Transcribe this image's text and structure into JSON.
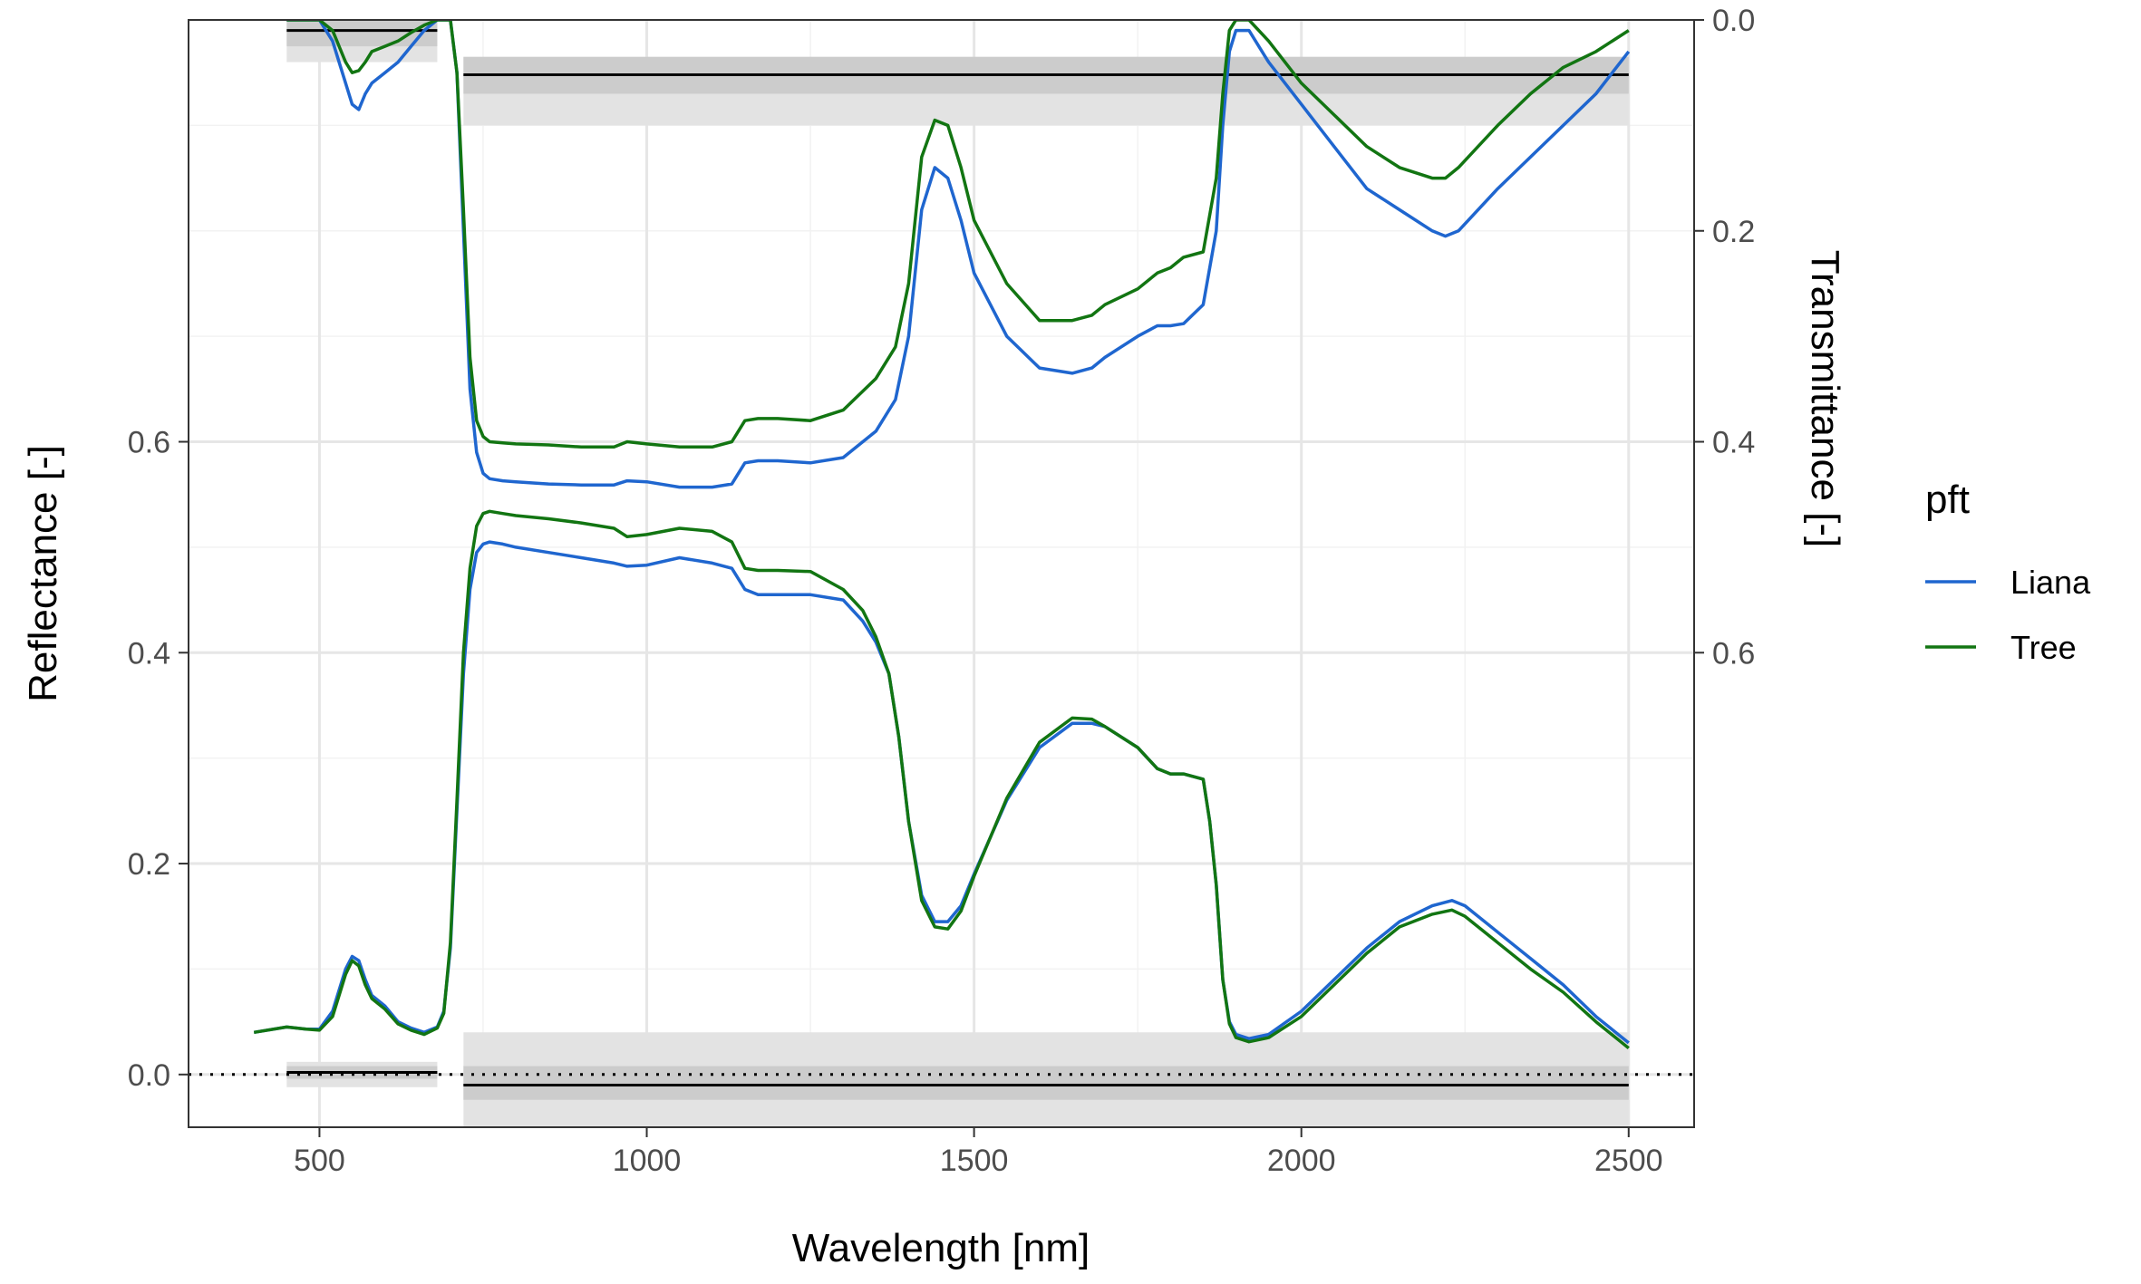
{
  "chart_data": {
    "type": "line",
    "x_label": "Wavelength [nm]",
    "y_label": "Reflectance [-]",
    "y2_label": "Transmittance [-]",
    "x_range": [
      300,
      2600
    ],
    "y_range": [
      -0.05,
      1.0
    ],
    "y2_range": [
      0.0,
      1.05
    ],
    "y2_reversed": true,
    "x_ticks": [
      {
        "value": 500,
        "label": "500"
      },
      {
        "value": 1000,
        "label": "1000"
      },
      {
        "value": 1500,
        "label": "1500"
      },
      {
        "value": 2000,
        "label": "2000"
      },
      {
        "value": 2500,
        "label": "2500"
      }
    ],
    "x_minor_ticks": [
      750,
      1250,
      1750,
      2250
    ],
    "y_ticks": [
      {
        "value": 0.0,
        "label": "0.0"
      },
      {
        "value": 0.2,
        "label": "0.2"
      },
      {
        "value": 0.4,
        "label": "0.4"
      },
      {
        "value": 0.6,
        "label": "0.6"
      }
    ],
    "y_minor_ticks": [
      0.1,
      0.3,
      0.5,
      0.7,
      0.8,
      0.9
    ],
    "y2_ticks": [
      {
        "value": 0.0,
        "label": "0.0"
      },
      {
        "value": 0.2,
        "label": "0.2"
      },
      {
        "value": 0.4,
        "label": "0.4"
      },
      {
        "value": 0.6,
        "label": "0.6"
      }
    ],
    "grid": true,
    "zero_line": {
      "y": 0.0,
      "style": "dotted"
    },
    "legend": {
      "title": "pft",
      "position": "right"
    },
    "series": [
      {
        "name": "Liana",
        "color": "#1f66cf",
        "reflectance": {
          "x": [
            400,
            450,
            480,
            500,
            520,
            540,
            550,
            560,
            570,
            580,
            600,
            620,
            640,
            660,
            680,
            690,
            700,
            710,
            720,
            730,
            740,
            750,
            760,
            780,
            800,
            850,
            900,
            950,
            970,
            1000,
            1050,
            1100,
            1130,
            1150,
            1170,
            1200,
            1250,
            1300,
            1330,
            1350,
            1370,
            1385,
            1400,
            1420,
            1440,
            1460,
            1480,
            1500,
            1550,
            1600,
            1650,
            1680,
            1700,
            1750,
            1780,
            1800,
            1820,
            1850,
            1860,
            1870,
            1880,
            1890,
            1900,
            1920,
            1950,
            2000,
            2050,
            2100,
            2150,
            2200,
            2230,
            2250,
            2300,
            2350,
            2400,
            2450,
            2500
          ],
          "y": [
            0.04,
            0.045,
            0.043,
            0.043,
            0.06,
            0.1,
            0.112,
            0.108,
            0.09,
            0.075,
            0.065,
            0.05,
            0.044,
            0.04,
            0.045,
            0.06,
            0.12,
            0.25,
            0.38,
            0.46,
            0.495,
            0.503,
            0.505,
            0.503,
            0.5,
            0.495,
            0.49,
            0.485,
            0.482,
            0.483,
            0.49,
            0.485,
            0.48,
            0.46,
            0.455,
            0.455,
            0.455,
            0.45,
            0.43,
            0.41,
            0.38,
            0.32,
            0.24,
            0.17,
            0.145,
            0.145,
            0.16,
            0.19,
            0.26,
            0.31,
            0.333,
            0.333,
            0.33,
            0.31,
            0.29,
            0.285,
            0.285,
            0.28,
            0.24,
            0.18,
            0.09,
            0.05,
            0.038,
            0.034,
            0.038,
            0.06,
            0.09,
            0.12,
            0.145,
            0.16,
            0.165,
            0.16,
            0.135,
            0.11,
            0.085,
            0.055,
            0.03
          ]
        },
        "transmittance": {
          "x": [
            450,
            480,
            500,
            520,
            540,
            550,
            560,
            570,
            580,
            600,
            620,
            640,
            660,
            680,
            690,
            700,
            710,
            720,
            730,
            740,
            750,
            760,
            780,
            800,
            850,
            900,
            950,
            970,
            1000,
            1050,
            1100,
            1130,
            1150,
            1170,
            1200,
            1250,
            1300,
            1350,
            1380,
            1400,
            1420,
            1440,
            1460,
            1480,
            1500,
            1550,
            1600,
            1650,
            1680,
            1700,
            1750,
            1780,
            1800,
            1820,
            1850,
            1870,
            1880,
            1890,
            1900,
            1920,
            1950,
            2000,
            2050,
            2100,
            2150,
            2200,
            2220,
            2240,
            2300,
            2350,
            2400,
            2450,
            2500
          ],
          "y": [
            0.0,
            0.0,
            0.0,
            0.02,
            0.06,
            0.08,
            0.085,
            0.07,
            0.06,
            0.05,
            0.04,
            0.025,
            0.01,
            0.0,
            0.0,
            0.0,
            0.05,
            0.2,
            0.35,
            0.41,
            0.43,
            0.435,
            0.437,
            0.438,
            0.44,
            0.441,
            0.441,
            0.437,
            0.438,
            0.443,
            0.443,
            0.44,
            0.42,
            0.418,
            0.418,
            0.42,
            0.415,
            0.39,
            0.36,
            0.3,
            0.18,
            0.14,
            0.15,
            0.19,
            0.24,
            0.3,
            0.33,
            0.335,
            0.33,
            0.32,
            0.3,
            0.29,
            0.29,
            0.288,
            0.27,
            0.2,
            0.1,
            0.03,
            0.01,
            0.01,
            0.04,
            0.08,
            0.12,
            0.16,
            0.18,
            0.2,
            0.205,
            0.2,
            0.16,
            0.13,
            0.1,
            0.07,
            0.03
          ]
        }
      },
      {
        "name": "Tree",
        "color": "#127512",
        "reflectance": {
          "x": [
            400,
            450,
            480,
            500,
            520,
            540,
            550,
            560,
            570,
            580,
            600,
            620,
            640,
            660,
            680,
            690,
            700,
            710,
            720,
            730,
            740,
            750,
            760,
            780,
            800,
            850,
            900,
            950,
            970,
            1000,
            1050,
            1100,
            1130,
            1150,
            1170,
            1200,
            1250,
            1300,
            1330,
            1350,
            1370,
            1385,
            1400,
            1420,
            1440,
            1460,
            1480,
            1500,
            1550,
            1600,
            1650,
            1680,
            1700,
            1750,
            1780,
            1800,
            1820,
            1850,
            1860,
            1870,
            1880,
            1890,
            1900,
            1920,
            1950,
            2000,
            2050,
            2100,
            2150,
            2200,
            2230,
            2250,
            2300,
            2350,
            2400,
            2450,
            2500
          ],
          "y": [
            0.04,
            0.045,
            0.043,
            0.042,
            0.055,
            0.095,
            0.108,
            0.103,
            0.085,
            0.072,
            0.062,
            0.048,
            0.042,
            0.038,
            0.044,
            0.058,
            0.125,
            0.26,
            0.4,
            0.48,
            0.52,
            0.532,
            0.534,
            0.532,
            0.53,
            0.527,
            0.523,
            0.518,
            0.51,
            0.512,
            0.518,
            0.515,
            0.505,
            0.48,
            0.478,
            0.478,
            0.477,
            0.46,
            0.44,
            0.415,
            0.38,
            0.32,
            0.24,
            0.165,
            0.14,
            0.138,
            0.155,
            0.188,
            0.262,
            0.315,
            0.338,
            0.337,
            0.33,
            0.31,
            0.29,
            0.285,
            0.285,
            0.28,
            0.24,
            0.18,
            0.09,
            0.048,
            0.035,
            0.031,
            0.035,
            0.055,
            0.085,
            0.115,
            0.14,
            0.152,
            0.156,
            0.15,
            0.125,
            0.1,
            0.078,
            0.05,
            0.025
          ]
        },
        "transmittance": {
          "x": [
            450,
            480,
            500,
            520,
            540,
            550,
            560,
            570,
            580,
            600,
            620,
            640,
            660,
            680,
            690,
            700,
            710,
            720,
            730,
            740,
            750,
            760,
            780,
            800,
            850,
            900,
            950,
            970,
            1000,
            1050,
            1100,
            1130,
            1150,
            1170,
            1200,
            1250,
            1300,
            1350,
            1380,
            1400,
            1420,
            1440,
            1460,
            1480,
            1500,
            1550,
            1600,
            1650,
            1680,
            1700,
            1750,
            1780,
            1800,
            1820,
            1850,
            1870,
            1880,
            1890,
            1900,
            1920,
            1950,
            2000,
            2050,
            2100,
            2150,
            2200,
            2220,
            2240,
            2300,
            2350,
            2400,
            2450,
            2500
          ],
          "y": [
            0.0,
            0.0,
            0.0,
            0.01,
            0.04,
            0.05,
            0.048,
            0.04,
            0.03,
            0.025,
            0.02,
            0.012,
            0.005,
            0.0,
            0.0,
            0.0,
            0.05,
            0.18,
            0.32,
            0.38,
            0.395,
            0.4,
            0.401,
            0.402,
            0.403,
            0.405,
            0.405,
            0.4,
            0.402,
            0.405,
            0.405,
            0.4,
            0.38,
            0.378,
            0.378,
            0.38,
            0.37,
            0.34,
            0.31,
            0.25,
            0.13,
            0.095,
            0.1,
            0.14,
            0.19,
            0.25,
            0.285,
            0.285,
            0.28,
            0.27,
            0.255,
            0.24,
            0.235,
            0.225,
            0.22,
            0.15,
            0.07,
            0.01,
            0.0,
            0.0,
            0.02,
            0.06,
            0.09,
            0.12,
            0.14,
            0.15,
            0.15,
            0.14,
            0.1,
            0.07,
            0.045,
            0.03,
            0.01
          ]
        }
      }
    ],
    "reference_bands": [
      {
        "x_start": 450,
        "x_end": 680,
        "axis": "reflectance",
        "center": 0.002,
        "inner": [
          -0.004,
          0.008
        ],
        "outer": [
          -0.012,
          0.012
        ]
      },
      {
        "x_start": 720,
        "x_end": 2500,
        "axis": "reflectance",
        "center": -0.01,
        "inner": [
          -0.024,
          0.008
        ],
        "outer": [
          -0.05,
          0.04
        ]
      },
      {
        "x_start": 450,
        "x_end": 680,
        "axis": "transmittance",
        "center": 0.01,
        "inner": [
          0.0,
          0.025
        ],
        "outer": [
          -0.01,
          0.04
        ]
      },
      {
        "x_start": 720,
        "x_end": 2500,
        "axis": "transmittance",
        "center": 0.052,
        "inner": [
          0.035,
          0.07
        ],
        "outer": [
          0.035,
          0.1
        ]
      }
    ]
  }
}
